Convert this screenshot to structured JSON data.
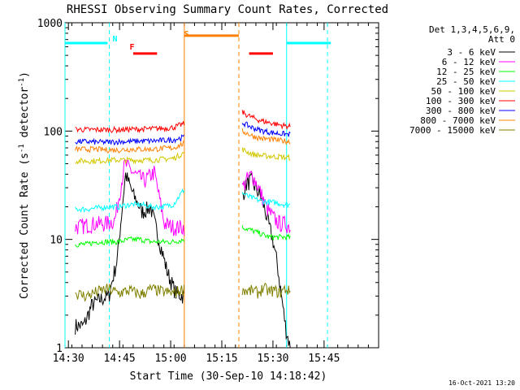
{
  "chart_data": {
    "type": "line",
    "title": "RHESSI Observing Summary Count Rates, Corrected",
    "xlabel": "Start Time (30-Sep-10 14:18:42)",
    "ylabel": "Corrected Count Rate (s",
    "ylabel_sup": "-1",
    "ylabel_end": " detector",
    "ylabel_end_sup": "-1",
    "ylabel_close": ")",
    "y_scale": "log",
    "ylim": [
      1,
      1000
    ],
    "y_ticks": [
      {
        "value": 1,
        "label": "1"
      },
      {
        "value": 10,
        "label": "10"
      },
      {
        "value": 100,
        "label": "100"
      },
      {
        "value": 1000,
        "label": "1000"
      }
    ],
    "xlim_minutes": [
      1,
      75
    ],
    "x_ticks": [
      {
        "minute": 12,
        "label": "14:30"
      },
      {
        "minute": 27,
        "label": "14:45"
      },
      {
        "minute": 42,
        "label": "15:00"
      },
      {
        "minute": 57,
        "label": "15:15"
      },
      {
        "minute": 72,
        "label": "15:30"
      },
      {
        "minute": 87,
        "label": "15:45"
      }
    ],
    "timestamp": "16-Oct-2021 13:20",
    "legend_header": [
      "Det 1,3,4,5,6,9,",
      "Att 0"
    ],
    "legend_placement": "top-right outside",
    "series": [
      {
        "name": "3 - 6 keV",
        "color": "#000000",
        "seg1": [
          1.6,
          1.6,
          2.5,
          2.8,
          3.0,
          6.5,
          40,
          25,
          18,
          20,
          10,
          5,
          3.2,
          3.0
        ],
        "seg2": [
          25,
          33,
          35,
          30,
          26,
          20,
          14,
          10,
          6,
          3,
          1.5,
          1.0
        ]
      },
      {
        "name": "6 - 12 keV",
        "color": "#ff00ff",
        "seg1": [
          13,
          13.5,
          14,
          14,
          15,
          50,
          40,
          35,
          42,
          14,
          13,
          13
        ],
        "seg2": [
          30,
          36,
          40,
          33,
          26,
          20,
          17,
          15,
          14,
          14,
          13
        ]
      },
      {
        "name": "12 - 25 keV",
        "color": "#00ff00",
        "seg1": [
          9,
          9,
          9.5,
          9.5,
          9.5,
          10,
          10,
          9.5,
          9.5,
          9.5,
          10
        ],
        "seg2": [
          13,
          12.5,
          12,
          11.5,
          11,
          10.5,
          10.5,
          10.5,
          10.5,
          10.5
        ]
      },
      {
        "name": "25 - 50 keV",
        "color": "#00ffff",
        "seg1": [
          19,
          19,
          19.5,
          20,
          20,
          21,
          21,
          20,
          20,
          21,
          29
        ],
        "seg2": [
          27,
          25,
          24,
          23,
          22.5,
          22,
          22,
          21.5,
          21,
          21
        ]
      },
      {
        "name": "50 - 100 keV",
        "color": "#d2c800",
        "seg1": [
          53,
          53,
          53,
          54,
          54,
          54,
          54,
          54,
          55,
          56,
          63
        ],
        "seg2": [
          68,
          64,
          61,
          60,
          59,
          59,
          58,
          58,
          57,
          57
        ]
      },
      {
        "name": "100 - 300 keV",
        "color": "#ff0000",
        "seg1": [
          104,
          103,
          103,
          103,
          103,
          104,
          104,
          105,
          106,
          108,
          117
        ],
        "seg2": [
          150,
          140,
          133,
          127,
          123,
          120,
          117,
          114,
          112,
          110
        ]
      },
      {
        "name": "300 - 800 keV",
        "color": "#0000ff",
        "seg1": [
          80,
          80,
          79,
          79,
          80,
          80,
          81,
          81,
          82,
          83,
          88
        ],
        "seg2": [
          120,
          113,
          107,
          103,
          100,
          98,
          96,
          95,
          94,
          93
        ]
      },
      {
        "name": "800 - 7000 keV",
        "color": "#ff8000",
        "seg1": [
          68,
          68,
          68,
          67,
          67,
          68,
          68,
          68,
          69,
          70,
          77
        ],
        "seg2": [
          100,
          95,
          90,
          87,
          85,
          84,
          83,
          82,
          81,
          80
        ]
      },
      {
        "name": "7000 - 15000 keV",
        "color": "#808000",
        "seg1": [
          3.2,
          3.0,
          3.3,
          3.5,
          3.2,
          3.4,
          3.1,
          3.5,
          3.3,
          3.2,
          3.5
        ],
        "seg2": [
          3.5,
          3.3,
          3.4,
          3.2,
          3.6,
          3.3,
          3.4,
          3.2,
          3.5,
          3.3
        ]
      }
    ],
    "segment1_minutes": [
      4,
      36
    ],
    "segment2_minutes": [
      53,
      67
    ],
    "annotations": [
      {
        "label": "N",
        "color": "#00ffff",
        "minute": 14
      },
      {
        "label": "F",
        "color": "#ff0000",
        "minute": 19
      },
      {
        "label": "S",
        "color": "#ff8000",
        "minute": 35
      }
    ],
    "night_bars": [
      {
        "color": "#00ffff",
        "from_minute": 1,
        "to_minute": 13.5,
        "level": 650
      },
      {
        "color": "#00ffff",
        "from_minute": 66,
        "to_minute": 79,
        "level": 650
      }
    ],
    "flare_bars": [
      {
        "color": "#ff0000",
        "from_minute": 21,
        "to_minute": 28,
        "level": 520
      },
      {
        "color": "#ff0000",
        "from_minute": 55,
        "to_minute": 62,
        "level": 520
      }
    ],
    "saa_bar": {
      "color": "#ff8000",
      "from_minute": 36,
      "to_minute": 52,
      "level": 760
    },
    "vlines": [
      {
        "minute": 1,
        "color": "#00ffff",
        "style": "solid"
      },
      {
        "minute": 14,
        "color": "#00ffff",
        "style": "dashed"
      },
      {
        "minute": 36,
        "color": "#ff8000",
        "style": "solid"
      },
      {
        "minute": 52,
        "color": "#ff8000",
        "style": "dashed"
      },
      {
        "minute": 66,
        "color": "#00ffff",
        "style": "solid"
      },
      {
        "minute": 78,
        "color": "#00ffff",
        "style": "dashed"
      }
    ]
  }
}
